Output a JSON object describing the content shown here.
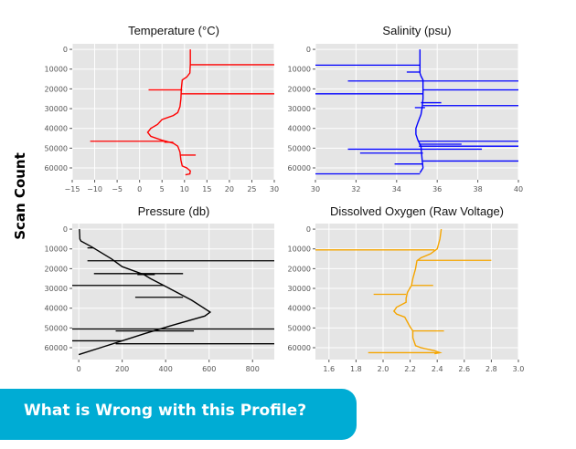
{
  "y_axis_label": "Scan Count",
  "banner": {
    "text": "What is Wrong with this Profile?",
    "color": "#00acd4"
  },
  "chart_data": [
    {
      "type": "line",
      "title": "Temperature (°C)",
      "color": "#ff0000",
      "xlim": [
        -15,
        30
      ],
      "ylim": [
        66000,
        -2800
      ],
      "y_inverted": true,
      "grid": true,
      "xticks": [
        -15,
        -10,
        -5,
        0,
        5,
        10,
        15,
        20,
        25,
        30
      ],
      "yticks": [
        0,
        10000,
        20000,
        30000,
        40000,
        50000,
        60000
      ],
      "profile": [
        [
          11.3,
          0
        ],
        [
          11.3,
          7500
        ],
        [
          11.2,
          12000
        ],
        [
          10.5,
          14000
        ],
        [
          9.5,
          15500
        ],
        [
          9.3,
          20000
        ],
        [
          9.2,
          25000
        ],
        [
          9,
          29000
        ],
        [
          8.5,
          32000
        ],
        [
          7.5,
          33500
        ],
        [
          5,
          35500
        ],
        [
          4,
          38000
        ],
        [
          2.5,
          40000
        ],
        [
          1.8,
          42000
        ],
        [
          2.5,
          44000
        ],
        [
          5,
          46000
        ],
        [
          7.5,
          47500
        ],
        [
          8.5,
          49000
        ],
        [
          9,
          52000
        ],
        [
          9.2,
          56000
        ],
        [
          9.5,
          59000
        ],
        [
          10.5,
          60000
        ],
        [
          11.3,
          61500
        ],
        [
          11.2,
          63000
        ],
        [
          10.2,
          63500
        ]
      ],
      "spikes": [
        [
          7800,
          11.3,
          30
        ],
        [
          20500,
          2,
          9.5
        ],
        [
          22500,
          9.2,
          30
        ],
        [
          46500,
          -11,
          6
        ],
        [
          47000,
          5.5,
          7.5
        ],
        [
          53500,
          9.2,
          12.5
        ]
      ]
    },
    {
      "type": "line",
      "title": "Salinity (psu)",
      "color": "#0000ff",
      "xlim": [
        30,
        40
      ],
      "ylim": [
        66000,
        -2800
      ],
      "y_inverted": true,
      "grid": true,
      "xticks": [
        30,
        32,
        34,
        36,
        38,
        40
      ],
      "yticks": [
        0,
        10000,
        20000,
        30000,
        40000,
        50000,
        60000
      ],
      "profile": [
        [
          35.15,
          0
        ],
        [
          35.15,
          12000
        ],
        [
          35.2,
          13500
        ],
        [
          35.3,
          15500
        ],
        [
          35.3,
          25000
        ],
        [
          35.25,
          30000
        ],
        [
          35.2,
          33000
        ],
        [
          35.05,
          37000
        ],
        [
          34.95,
          40000
        ],
        [
          34.95,
          43000
        ],
        [
          35.05,
          46000
        ],
        [
          35.2,
          49000
        ],
        [
          35.25,
          55000
        ],
        [
          35.3,
          60000
        ],
        [
          35.15,
          62500
        ]
      ],
      "spikes": [
        [
          8000,
          30,
          35.15
        ],
        [
          11500,
          34.5,
          35.15
        ],
        [
          16000,
          31.6,
          40
        ],
        [
          20500,
          35.3,
          40
        ],
        [
          22500,
          30,
          35.3
        ],
        [
          27000,
          35.2,
          36.2
        ],
        [
          28500,
          35.3,
          40
        ],
        [
          29500,
          34.9,
          35.4
        ],
        [
          46500,
          35.1,
          40
        ],
        [
          48000,
          35.1,
          37.2
        ],
        [
          49000,
          35.1,
          40
        ],
        [
          50500,
          31.6,
          38.2
        ],
        [
          52500,
          32.2,
          35.3
        ],
        [
          56500,
          35.3,
          40
        ],
        [
          58000,
          33.9,
          35.3
        ],
        [
          63000,
          30,
          35.15
        ]
      ]
    },
    {
      "type": "line",
      "title": "Pressure (db)",
      "color": "#000000",
      "xlim": [
        -30,
        900
      ],
      "ylim": [
        66000,
        -2800
      ],
      "y_inverted": true,
      "grid": true,
      "xticks": [
        0,
        200,
        400,
        600,
        800
      ],
      "yticks": [
        0,
        10000,
        20000,
        30000,
        40000,
        50000,
        60000
      ],
      "profile": [
        [
          3,
          0
        ],
        [
          5,
          5000
        ],
        [
          10,
          6000
        ],
        [
          60,
          9000
        ],
        [
          150,
          15000
        ],
        [
          200,
          19000
        ],
        [
          300,
          23000
        ],
        [
          330,
          25000
        ],
        [
          400,
          29000
        ],
        [
          520,
          36000
        ],
        [
          605,
          42000
        ],
        [
          580,
          44000
        ],
        [
          420,
          49000
        ],
        [
          300,
          53000
        ],
        [
          200,
          56500
        ],
        [
          100,
          60000
        ],
        [
          0,
          63500
        ]
      ],
      "spikes": [
        [
          9500,
          40,
          70
        ],
        [
          16000,
          40,
          900
        ],
        [
          22500,
          70,
          480
        ],
        [
          23000,
          270,
          350
        ],
        [
          28500,
          -30,
          390
        ],
        [
          34500,
          260,
          480
        ],
        [
          50500,
          -30,
          900
        ],
        [
          51500,
          170,
          530
        ],
        [
          56500,
          -30,
          200
        ],
        [
          58000,
          170,
          900
        ]
      ]
    },
    {
      "type": "line",
      "title": "Dissolved Oxygen (Raw Voltage)",
      "color": "#f5a500",
      "xlim": [
        1.5,
        3.0
      ],
      "ylim": [
        66000,
        -2800
      ],
      "y_inverted": true,
      "grid": true,
      "xticks": [
        1.6,
        1.8,
        2.0,
        2.2,
        2.4,
        2.6,
        2.8,
        3.0
      ],
      "yticks": [
        0,
        10000,
        20000,
        30000,
        40000,
        50000,
        60000
      ],
      "profile": [
        [
          2.43,
          0
        ],
        [
          2.42,
          5000
        ],
        [
          2.4,
          10000
        ],
        [
          2.35,
          12500
        ],
        [
          2.28,
          14500
        ],
        [
          2.25,
          16000
        ],
        [
          2.24,
          20000
        ],
        [
          2.22,
          25000
        ],
        [
          2.21,
          28500
        ],
        [
          2.18,
          32000
        ],
        [
          2.17,
          35000
        ],
        [
          2.17,
          37000
        ],
        [
          2.1,
          39500
        ],
        [
          2.08,
          41500
        ],
        [
          2.1,
          43000
        ],
        [
          2.16,
          44500
        ],
        [
          2.18,
          47000
        ],
        [
          2.2,
          49500
        ],
        [
          2.22,
          51500
        ],
        [
          2.22,
          55000
        ],
        [
          2.24,
          59000
        ],
        [
          2.28,
          60000
        ],
        [
          2.38,
          61500
        ],
        [
          2.42,
          62500
        ],
        [
          2.38,
          63000
        ]
      ],
      "spikes": [
        [
          10500,
          1.5,
          2.38
        ],
        [
          15800,
          2.25,
          2.8
        ],
        [
          28500,
          2.21,
          2.37
        ],
        [
          33000,
          1.93,
          2.17
        ],
        [
          51500,
          2.22,
          2.45
        ],
        [
          62500,
          1.89,
          2.42
        ]
      ]
    }
  ]
}
